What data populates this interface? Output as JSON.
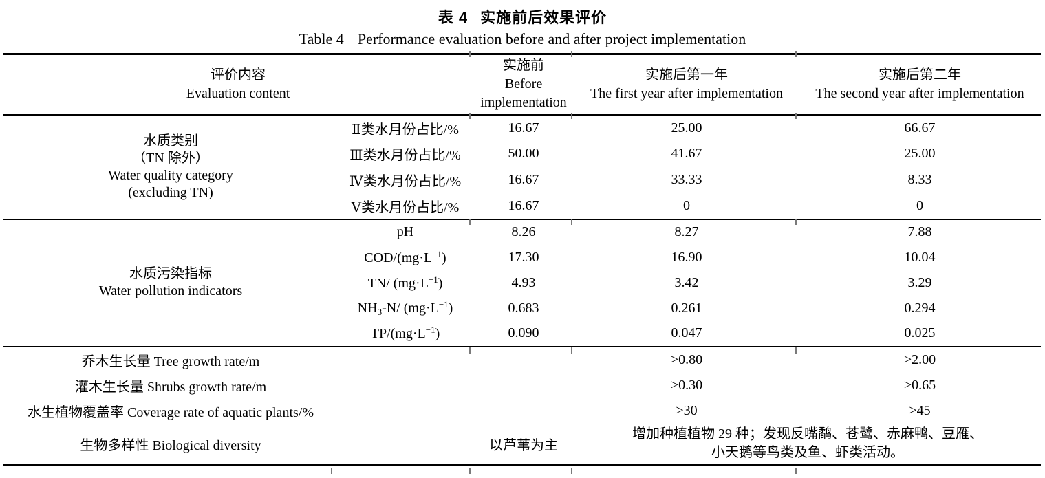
{
  "title": {
    "zh_prefix": "表 4",
    "zh_main": "实施前后效果评价",
    "en_prefix": "Table 4",
    "en_main": "Performance evaluation before and after project implementation"
  },
  "header": {
    "content": {
      "zh": "评价内容",
      "en": "Evaluation content"
    },
    "before": {
      "zh": "实施前",
      "en1": "Before",
      "en2": "implementation"
    },
    "year1": {
      "zh": "实施后第一年",
      "en": "The first year after implementation"
    },
    "year2": {
      "zh": "实施后第二年",
      "en": "The second year after implementation"
    }
  },
  "sections": [
    {
      "group_lines": [
        "水质类别",
        "（TN 除外）",
        "Water quality category",
        "(excluding TN)"
      ],
      "rows": [
        {
          "indicator": "Ⅱ类水月份占比/%",
          "before": "16.67",
          "year1": "25.00",
          "year2": "66.67"
        },
        {
          "indicator": "Ⅲ类水月份占比/%",
          "before": "50.00",
          "year1": "41.67",
          "year2": "25.00"
        },
        {
          "indicator": "Ⅳ类水月份占比/%",
          "before": "16.67",
          "year1": "33.33",
          "year2": "8.33"
        },
        {
          "indicator": "Ⅴ类水月份占比/%",
          "before": "16.67",
          "year1": "0",
          "year2": "0"
        }
      ]
    },
    {
      "group_lines": [
        "水质污染指标",
        "Water pollution indicators"
      ],
      "rows": [
        {
          "segments": [
            {
              "t": "pH"
            }
          ],
          "before": "8.26",
          "year1": "8.27",
          "year2": "7.88"
        },
        {
          "segments": [
            {
              "t": "COD/(mg·L"
            },
            {
              "t": "−1",
              "s": "sup"
            },
            {
              "t": ")"
            }
          ],
          "before": "17.30",
          "year1": "16.90",
          "year2": "10.04"
        },
        {
          "segments": [
            {
              "t": "TN/ (mg·L"
            },
            {
              "t": "−1",
              "s": "sup"
            },
            {
              "t": ")"
            }
          ],
          "before": "4.93",
          "year1": "3.42",
          "year2": "3.29"
        },
        {
          "segments": [
            {
              "t": "NH"
            },
            {
              "t": "3",
              "s": "sub"
            },
            {
              "t": "-N/ (mg·L"
            },
            {
              "t": "−1",
              "s": "sup"
            },
            {
              "t": ")"
            }
          ],
          "before": "0.683",
          "year1": "0.261",
          "year2": "0.294"
        },
        {
          "segments": [
            {
              "t": "TP/(mg·L"
            },
            {
              "t": "−1",
              "s": "sup"
            },
            {
              "t": ")"
            }
          ],
          "before": "0.090",
          "year1": "0.047",
          "year2": "0.025"
        }
      ]
    }
  ],
  "bottom": {
    "rows": [
      {
        "label": "乔木生长量 Tree growth rate/m",
        "before": "",
        "year1": ">0.80",
        "year2": ">2.00"
      },
      {
        "label": "灌木生长量 Shrubs growth rate/m",
        "before": "",
        "year1": ">0.30",
        "year2": ">0.65"
      },
      {
        "label": "水生植物覆盖率 Coverage rate of aquatic plants/%",
        "before": "",
        "year1": ">30",
        "year2": ">45"
      }
    ],
    "biodiversity": {
      "label": "生物多样性 Biological diversity",
      "before": "以芦苇为主",
      "line1": "增加种植植物 29 种；发现反嘴鹬、苍鹭、赤麻鸭、豆雁、",
      "line2": "小天鹅等鸟类及鱼、虾类活动。"
    }
  }
}
